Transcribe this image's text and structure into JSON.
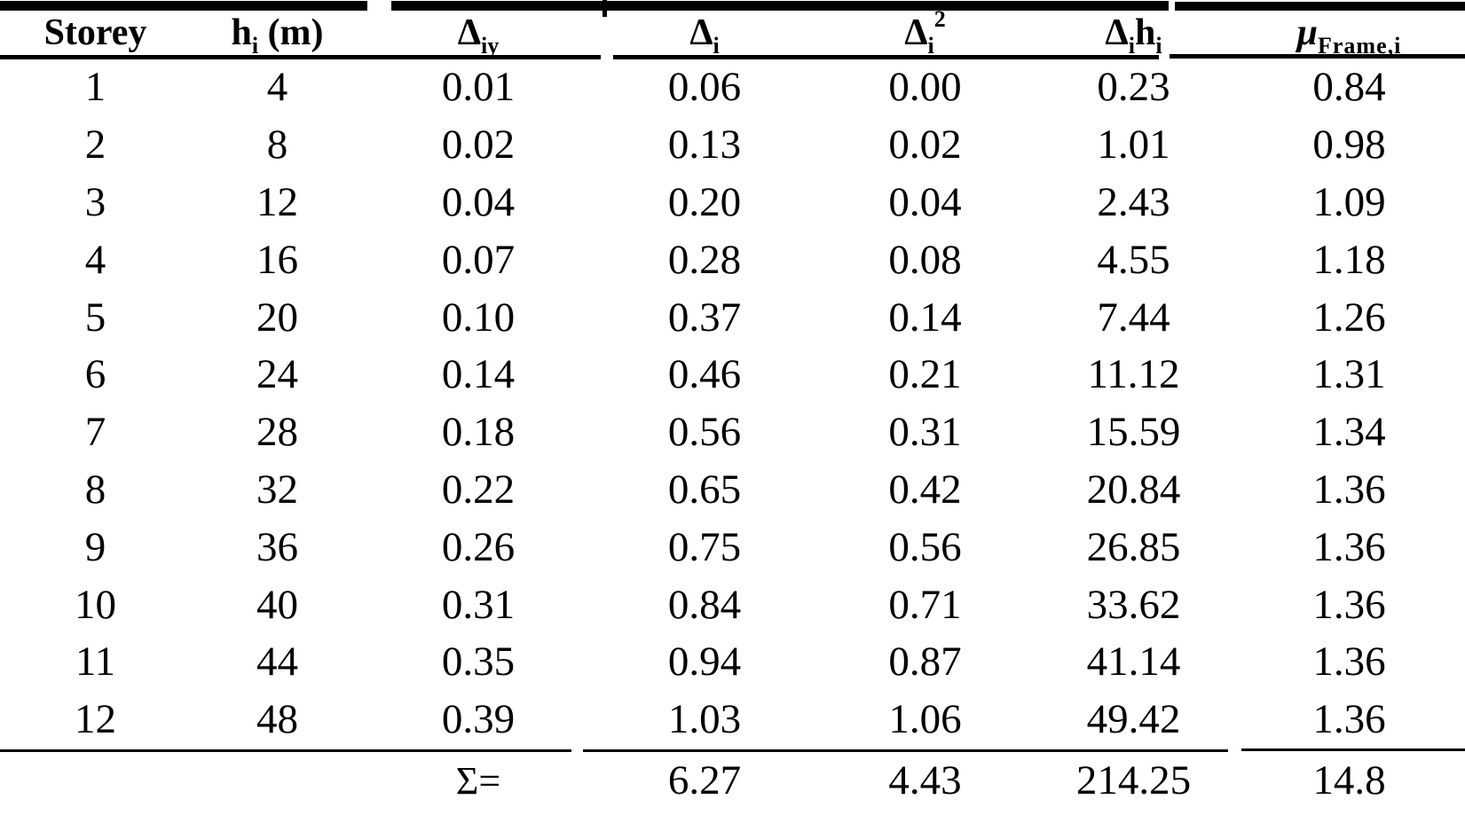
{
  "table": {
    "columns": [
      {
        "base": "Storey"
      },
      {
        "base": "h",
        "sub": "i",
        "suffix": " (m)"
      },
      {
        "base": "Δ",
        "sub": "iy"
      },
      {
        "base": "Δ",
        "sub": "i"
      },
      {
        "base": "Δ",
        "sub": "i",
        "sup": "2"
      },
      {
        "base": "Δ",
        "sub": "i",
        "base2": "h",
        "sub2": "i"
      },
      {
        "base": "μ",
        "sub": "Frame,i"
      }
    ],
    "rows": [
      [
        "1",
        "4",
        "0.01",
        "0.06",
        "0.00",
        "0.23",
        "0.84"
      ],
      [
        "2",
        "8",
        "0.02",
        "0.13",
        "0.02",
        "1.01",
        "0.98"
      ],
      [
        "3",
        "12",
        "0.04",
        "0.20",
        "0.04",
        "2.43",
        "1.09"
      ],
      [
        "4",
        "16",
        "0.07",
        "0.28",
        "0.08",
        "4.55",
        "1.18"
      ],
      [
        "5",
        "20",
        "0.10",
        "0.37",
        "0.14",
        "7.44",
        "1.26"
      ],
      [
        "6",
        "24",
        "0.14",
        "0.46",
        "0.21",
        "11.12",
        "1.31"
      ],
      [
        "7",
        "28",
        "0.18",
        "0.56",
        "0.31",
        "15.59",
        "1.34"
      ],
      [
        "8",
        "32",
        "0.22",
        "0.65",
        "0.42",
        "20.84",
        "1.36"
      ],
      [
        "9",
        "36",
        "0.26",
        "0.75",
        "0.56",
        "26.85",
        "1.36"
      ],
      [
        "10",
        "40",
        "0.31",
        "0.84",
        "0.71",
        "33.62",
        "1.36"
      ],
      [
        "11",
        "44",
        "0.35",
        "0.94",
        "0.87",
        "41.14",
        "1.36"
      ],
      [
        "12",
        "48",
        "0.39",
        "1.03",
        "1.06",
        "49.42",
        "1.36"
      ]
    ],
    "sum_values": [
      "",
      "",
      "Σ=",
      "6.27",
      "4.43",
      "214.25",
      "14.8"
    ]
  }
}
